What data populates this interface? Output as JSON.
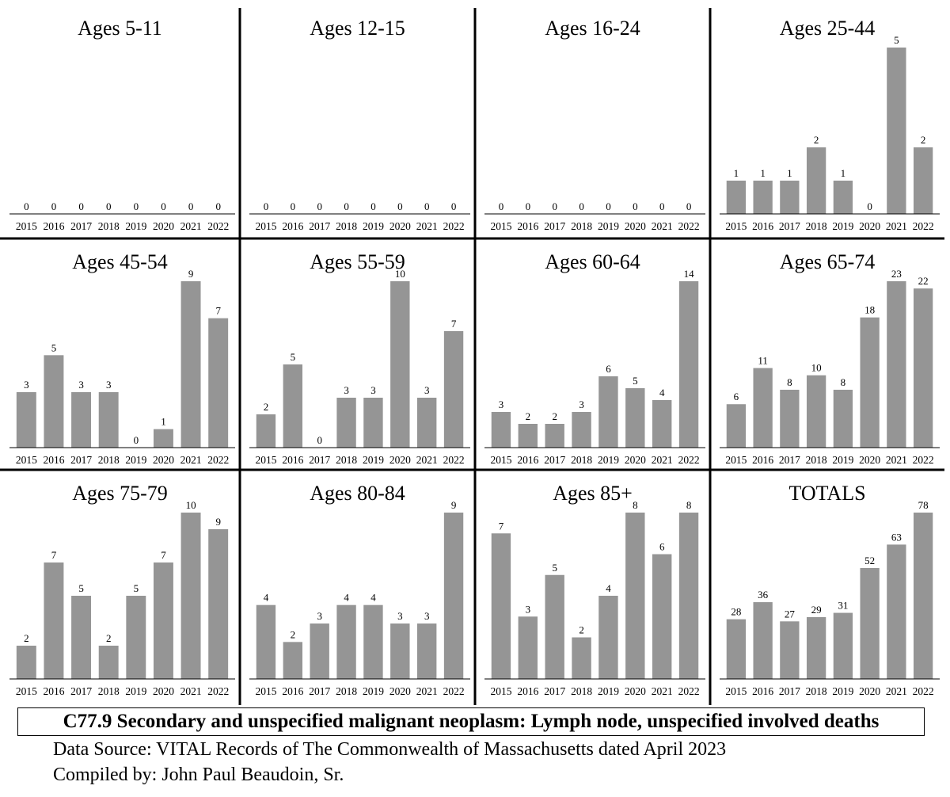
{
  "chart_data": [
    {
      "type": "bar",
      "title": "Ages 5-11",
      "categories": [
        "2015",
        "2016",
        "2017",
        "2018",
        "2019",
        "2020",
        "2021",
        "2022"
      ],
      "values": [
        0,
        0,
        0,
        0,
        0,
        0,
        0,
        0
      ]
    },
    {
      "type": "bar",
      "title": "Ages 12-15",
      "categories": [
        "2015",
        "2016",
        "2017",
        "2018",
        "2019",
        "2020",
        "2021",
        "2022"
      ],
      "values": [
        0,
        0,
        0,
        0,
        0,
        0,
        0,
        0
      ]
    },
    {
      "type": "bar",
      "title": "Ages 16-24",
      "categories": [
        "2015",
        "2016",
        "2017",
        "2018",
        "2019",
        "2020",
        "2021",
        "2022"
      ],
      "values": [
        0,
        0,
        0,
        0,
        0,
        0,
        0,
        0
      ]
    },
    {
      "type": "bar",
      "title": "Ages 25-44",
      "categories": [
        "2015",
        "2016",
        "2017",
        "2018",
        "2019",
        "2020",
        "2021",
        "2022"
      ],
      "values": [
        1,
        1,
        1,
        2,
        1,
        0,
        5,
        2
      ]
    },
    {
      "type": "bar",
      "title": "Ages 45-54",
      "categories": [
        "2015",
        "2016",
        "2017",
        "2018",
        "2019",
        "2020",
        "2021",
        "2022"
      ],
      "values": [
        3,
        5,
        3,
        3,
        0,
        1,
        9,
        7
      ]
    },
    {
      "type": "bar",
      "title": "Ages 55-59",
      "categories": [
        "2015",
        "2016",
        "2017",
        "2018",
        "2019",
        "2020",
        "2021",
        "2022"
      ],
      "values": [
        2,
        5,
        0,
        3,
        3,
        10,
        3,
        7
      ]
    },
    {
      "type": "bar",
      "title": "Ages 60-64",
      "categories": [
        "2015",
        "2016",
        "2017",
        "2018",
        "2019",
        "2020",
        "2021",
        "2022"
      ],
      "values": [
        3,
        2,
        2,
        3,
        6,
        5,
        4,
        14
      ]
    },
    {
      "type": "bar",
      "title": "Ages 65-74",
      "categories": [
        "2015",
        "2016",
        "2017",
        "2018",
        "2019",
        "2020",
        "2021",
        "2022"
      ],
      "values": [
        6,
        11,
        8,
        10,
        8,
        18,
        23,
        22
      ]
    },
    {
      "type": "bar",
      "title": "Ages 75-79",
      "categories": [
        "2015",
        "2016",
        "2017",
        "2018",
        "2019",
        "2020",
        "2021",
        "2022"
      ],
      "values": [
        2,
        7,
        5,
        2,
        5,
        7,
        10,
        9
      ]
    },
    {
      "type": "bar",
      "title": "Ages 80-84",
      "categories": [
        "2015",
        "2016",
        "2017",
        "2018",
        "2019",
        "2020",
        "2021",
        "2022"
      ],
      "values": [
        4,
        2,
        3,
        4,
        4,
        3,
        3,
        9
      ]
    },
    {
      "type": "bar",
      "title": "Ages 85+",
      "categories": [
        "2015",
        "2016",
        "2017",
        "2018",
        "2019",
        "2020",
        "2021",
        "2022"
      ],
      "values": [
        7,
        3,
        5,
        2,
        4,
        8,
        6,
        8
      ]
    },
    {
      "type": "bar",
      "title": "TOTALS",
      "categories": [
        "2015",
        "2016",
        "2017",
        "2018",
        "2019",
        "2020",
        "2021",
        "2022"
      ],
      "values": [
        28,
        36,
        27,
        29,
        31,
        52,
        63,
        78
      ]
    }
  ],
  "main_title": "C77.9 Secondary and unspecified malignant neoplasm: Lymph node, unspecified involved deaths",
  "source_line": "Data Source:  VITAL Records of The Commonwealth of Massachusetts dated April 2023",
  "compiled_line": "Compiled by:  John Paul Beaudoin, Sr.",
  "colors": {
    "bar": "#959595",
    "axis": "#000000",
    "text": "#000000"
  }
}
